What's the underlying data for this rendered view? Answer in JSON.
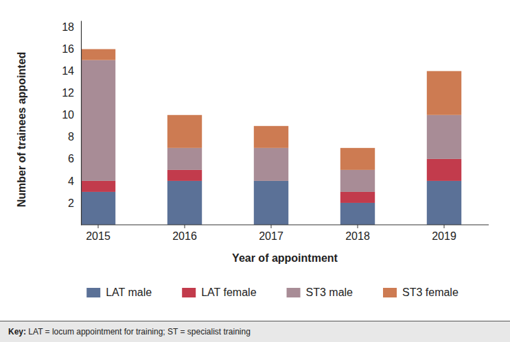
{
  "chart_data": {
    "type": "bar",
    "stacked": true,
    "x_label": "Year of appointment",
    "y_label": "Number of trainees appointed",
    "categories": [
      "2015",
      "2016",
      "2017",
      "2018",
      "2019"
    ],
    "series": [
      {
        "name": "LAT male",
        "color": "#5b7197",
        "values": [
          3,
          4,
          4,
          2,
          4
        ]
      },
      {
        "name": "LAT female",
        "color": "#c23b4c",
        "values": [
          1,
          1,
          0,
          1,
          2
        ]
      },
      {
        "name": "ST3 male",
        "color": "#a88c96",
        "values": [
          11,
          2,
          3,
          2,
          4
        ]
      },
      {
        "name": "ST3 female",
        "color": "#cd7b52",
        "values": [
          1,
          3,
          2,
          2,
          4
        ]
      }
    ],
    "ylim": [
      0,
      18.6
    ],
    "yticks": [
      2,
      4,
      6,
      8,
      10,
      12,
      14,
      16,
      18
    ],
    "grid": false,
    "legend": "bottom",
    "annotations": [
      "Key:",
      "LAT = locum appointment for training; ST = specialist training"
    ]
  }
}
